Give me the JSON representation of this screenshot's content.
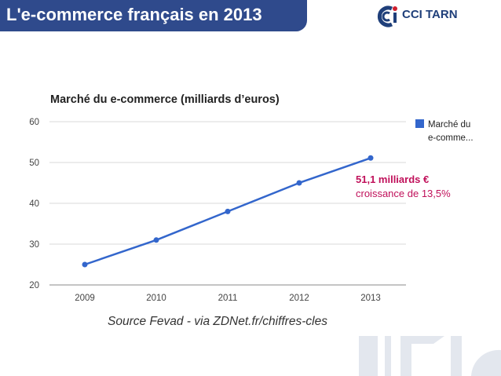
{
  "header": {
    "title": "L'e-commerce français en 2013",
    "logo_text": "CCI TARN",
    "title_bg": "#2f4a8c",
    "logo_color": "#1f3f7a"
  },
  "chart_data": {
    "type": "line",
    "title": "Marché du e-commerce (milliards d’euros)",
    "categories": [
      "2009",
      "2010",
      "2011",
      "2012",
      "2013"
    ],
    "series": [
      {
        "name": "Marché du e-comme...",
        "values": [
          25,
          31,
          38,
          45,
          51.1
        ],
        "color": "#3366cc"
      }
    ],
    "ylim": [
      20,
      60
    ],
    "yticks": [
      20,
      30,
      40,
      50,
      60
    ],
    "xlabel": "",
    "ylabel": "",
    "grid": true,
    "legend": "right",
    "legend_lines": [
      "Marché du",
      "e-comme..."
    ],
    "annotation": {
      "value": "51,1 milliards €",
      "text": "croissance de 13,5%",
      "color": "#c0105a"
    },
    "source": "Source Fevad - via ZDNet.fr/chiffres-cles"
  }
}
